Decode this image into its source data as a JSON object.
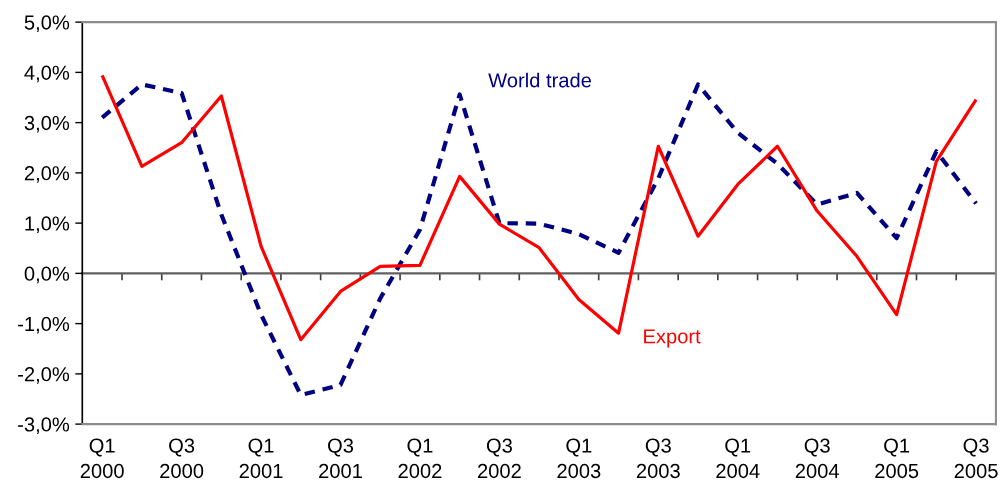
{
  "chart_data": {
    "type": "line",
    "categories": [
      "Q1\n2000",
      null,
      "Q3\n2000",
      null,
      "Q1\n2001",
      null,
      "Q3\n2001",
      null,
      "Q1\n2002",
      null,
      "Q3\n2002",
      null,
      "Q1\n2003",
      null,
      "Q3\n2003",
      null,
      "Q1\n2004",
      null,
      "Q3\n2004",
      null,
      "Q1\n2005",
      null,
      "Q3\n2005"
    ],
    "series": [
      {
        "name": "World trade",
        "color": "#000080",
        "line_style": "dashed",
        "values": [
          3.1,
          3.76,
          3.59,
          1.17,
          -0.82,
          -2.42,
          -2.22,
          -0.5,
          0.87,
          3.56,
          1.0,
          0.99,
          0.78,
          0.41,
          1.89,
          3.76,
          2.8,
          2.18,
          1.37,
          1.6,
          0.7,
          2.43,
          1.39
        ]
      },
      {
        "name": "Export",
        "color": "#ff0000",
        "line_style": "solid",
        "values": [
          3.94,
          2.13,
          2.6,
          3.53,
          0.54,
          -1.32,
          -0.36,
          0.14,
          0.16,
          1.93,
          0.98,
          0.51,
          -0.52,
          -1.19,
          2.53,
          0.74,
          1.77,
          2.53,
          1.24,
          0.34,
          -0.82,
          2.23,
          3.46
        ]
      }
    ],
    "ylim": [
      -3,
      5
    ],
    "yticks": [
      {
        "value": -3,
        "label": "-3,0%"
      },
      {
        "value": -2,
        "label": "-2,0%"
      },
      {
        "value": -1,
        "label": "-1,0%"
      },
      {
        "value": 0,
        "label": "0,0%"
      },
      {
        "value": 1,
        "label": "1,0%"
      },
      {
        "value": 2,
        "label": "2,0%"
      },
      {
        "value": 3,
        "label": "3,0%"
      },
      {
        "value": 4,
        "label": "4,0%"
      },
      {
        "value": 5,
        "label": "5,0%"
      }
    ],
    "marker": "none",
    "legend": false
  }
}
